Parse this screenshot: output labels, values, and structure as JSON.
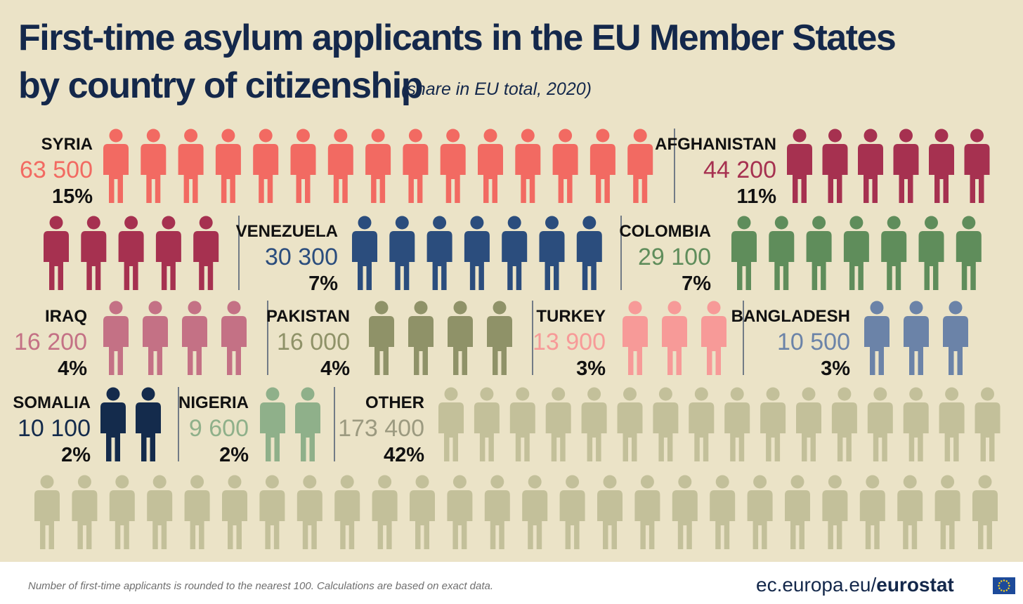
{
  "title_line1": "First-time asylum applicants in the EU Member States",
  "title_line2": "by country of citizenship",
  "subtitle": "(share in EU total, 2020)",
  "chart_data": {
    "type": "pictograph",
    "series": [
      {
        "name": "SYRIA",
        "value": 63500,
        "display_value": "63 500",
        "share": "15%",
        "icons": 15,
        "color": "#f26a62",
        "value_color": "#f26a62"
      },
      {
        "name": "AFGHANISTAN",
        "value": 44200,
        "display_value": "44 200",
        "share": "11%",
        "icons": 11,
        "color": "#a63150",
        "value_color": "#a63150"
      },
      {
        "name": "VENEZUELA",
        "value": 30300,
        "display_value": "30 300",
        "share": "7%",
        "icons": 7,
        "color": "#2b4d7d",
        "value_color": "#2b4d7d"
      },
      {
        "name": "COLOMBIA",
        "value": 29100,
        "display_value": "29 100",
        "share": "7%",
        "icons": 7,
        "color": "#5f8d5b",
        "value_color": "#5f8d5b"
      },
      {
        "name": "IRAQ",
        "value": 16200,
        "display_value": "16 200",
        "share": "4%",
        "icons": 4,
        "color": "#c47185",
        "value_color": "#c47185"
      },
      {
        "name": "PAKISTAN",
        "value": 16000,
        "display_value": "16 000",
        "share": "4%",
        "icons": 4,
        "color": "#8f9268",
        "value_color": "#8f9268"
      },
      {
        "name": "TURKEY",
        "value": 13900,
        "display_value": "13 900",
        "share": "3%",
        "icons": 3,
        "color": "#f79a98",
        "value_color": "#f79a98"
      },
      {
        "name": "BANGLADESH",
        "value": 10500,
        "display_value": "10 500",
        "share": "3%",
        "icons": 3,
        "color": "#6b83a8",
        "value_color": "#6b83a8"
      },
      {
        "name": "SOMALIA",
        "value": 10100,
        "display_value": "10 100",
        "share": "2%",
        "icons": 2,
        "color": "#142b4c",
        "value_color": "#142b4c"
      },
      {
        "name": "NIGERIA",
        "value": 9600,
        "display_value": "9 600",
        "share": "2%",
        "icons": 2,
        "color": "#8fb08a",
        "value_color": "#8fb08a"
      },
      {
        "name": "OTHER",
        "value": 173400,
        "display_value": "173 400",
        "share": "42%",
        "icons": 42,
        "color": "#c3c09a",
        "value_color": "#9c9a80"
      }
    ],
    "label_color": "#111111",
    "divider_color": "#4a5870"
  },
  "footer": {
    "footnote": "Number of first-time applicants is rounded  to the nearest 100. Calculations are based on exact data.",
    "brand_url": "ec.europa.eu/",
    "brand_name": "eurostat",
    "flag_color": "#1d4a9a",
    "star_color": "#ffd617"
  }
}
